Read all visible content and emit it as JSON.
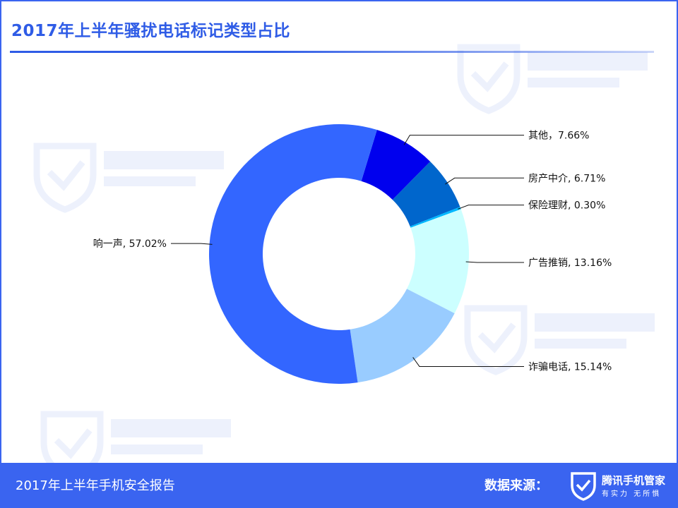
{
  "header": {
    "title": "2017年上半年骚扰电话标记类型占比"
  },
  "footer": {
    "report_title": "2017年上半年手机安全报告",
    "source_label": "数据来源：",
    "logo_name": "腾讯手机管家",
    "logo_slogan": "有实力 无所惧",
    "logo_icon": "tencent-shield-check-icon"
  },
  "colors": {
    "accent": "#3a64f0",
    "title": "#2f5ce6",
    "slices": [
      "#3366ff",
      "#0000ee",
      "#0066cc",
      "#00b8ff",
      "#ccffff",
      "#99ccff"
    ]
  },
  "chart_data": {
    "type": "donut",
    "title": "2017年上半年骚扰电话标记类型占比",
    "slices": [
      {
        "name": "响一声",
        "value": 57.02,
        "label": "响一声, 57.02%"
      },
      {
        "name": "其他",
        "value": 7.66,
        "label": "其他，7.66%"
      },
      {
        "name": "房产中介",
        "value": 6.71,
        "label": "房产中介, 6.71%"
      },
      {
        "name": "保险理财",
        "value": 0.3,
        "label": "保险理财, 0.30%"
      },
      {
        "name": "广告推销",
        "value": 13.16,
        "label": "广告推销, 13.16%"
      },
      {
        "name": "诈骗电话",
        "value": 15.14,
        "label": "诈骗电话, 15.14%"
      }
    ],
    "start_slice": "其他",
    "direction": "clockwise",
    "legend": "none"
  }
}
